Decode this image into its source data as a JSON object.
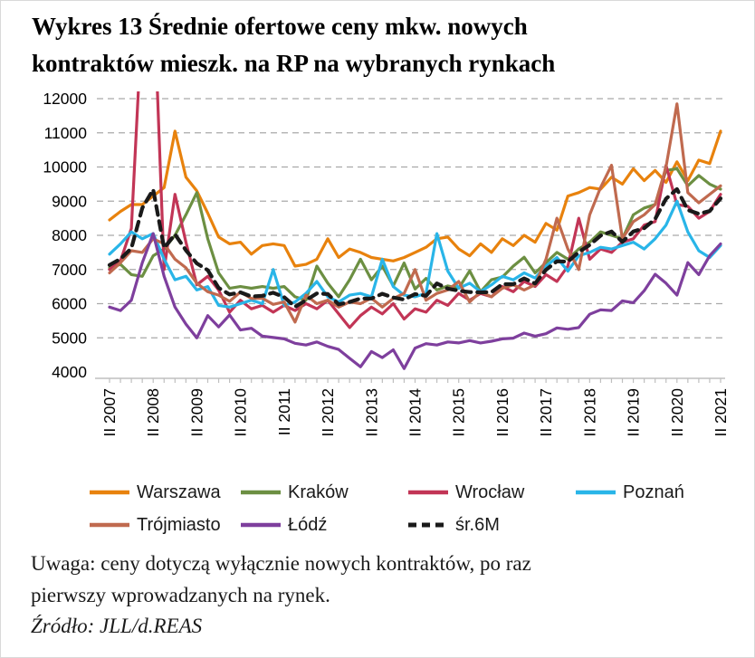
{
  "title": {
    "line1": "Wykres 13 Średnie ofertowe ceny mkw. nowych",
    "line2": "kontraktów mieszk. na RP na wybranych rynkach"
  },
  "note": {
    "line1": "Uwaga: ceny dotyczą wyłącznie nowych kontraktów, po raz",
    "line2": "pierwszy wprowadzanych na rynek."
  },
  "source": "Źródło: JLL/d.REAS",
  "colors": {
    "grid": "#a9a9a9",
    "axis": "#bfbfbf",
    "text": "#000000"
  },
  "chart_data": {
    "type": "line",
    "title": "Średnie ofertowe ceny mkw. nowych kontraktów mieszkaniowych na rynku pierwotnym",
    "xlabel": "",
    "ylabel": "",
    "ylim": [
      4000,
      12000
    ],
    "ytick_step": 1000,
    "grid": "horizontal-dashed",
    "legend_position": "bottom",
    "x_unit": "quarter",
    "n_points": 57,
    "x_tick_labels": [
      "II 2007",
      "II 2008",
      "II 2009",
      "II 2010",
      "II 2011",
      "II 2012",
      "II 2013",
      "II 2014",
      "II 2015",
      "II 2016",
      "II 2017",
      "II 2018",
      "II 2019",
      "II 2020",
      "II 2021"
    ],
    "x_tick_every": 4,
    "series": [
      {
        "name": "Warszawa",
        "color": "#E8820D",
        "dash": null,
        "width": 3.2,
        "values": [
          8450,
          8700,
          8900,
          8900,
          9150,
          9400,
          11050,
          9700,
          9300,
          8650,
          7950,
          7750,
          7800,
          7450,
          7700,
          7750,
          7700,
          7100,
          7150,
          7300,
          7900,
          7350,
          7600,
          7500,
          7350,
          7300,
          7250,
          7350,
          7500,
          7650,
          7900,
          7950,
          7600,
          7400,
          7750,
          7500,
          7900,
          7700,
          8000,
          7800,
          8350,
          8150,
          9150,
          9250,
          9400,
          9350,
          9700,
          9500,
          9950,
          9600,
          9900,
          9550,
          10150,
          9600,
          10200,
          10100,
          11050
        ]
      },
      {
        "name": "Kraków",
        "color": "#6C8F42",
        "dash": null,
        "width": 3.2,
        "values": [
          7050,
          7150,
          6850,
          6800,
          7400,
          7600,
          8000,
          8600,
          9250,
          7900,
          6900,
          6450,
          6500,
          6450,
          6500,
          6450,
          6500,
          6200,
          6100,
          7100,
          6600,
          6200,
          6700,
          7300,
          6700,
          7100,
          6520,
          7190,
          6430,
          6740,
          6400,
          6520,
          6450,
          6960,
          6350,
          6700,
          6780,
          7100,
          7360,
          6900,
          7200,
          7500,
          7300,
          7600,
          7800,
          8100,
          8000,
          7900,
          8600,
          8800,
          8900,
          9900,
          9950,
          9450,
          9750,
          9500,
          9350
        ]
      },
      {
        "name": "Wrocław",
        "color": "#C23556",
        "dash": null,
        "width": 3.2,
        "values": [
          7000,
          7250,
          8200,
          14500,
          15500,
          7000,
          9200,
          7800,
          6550,
          6800,
          6400,
          5750,
          6100,
          5850,
          5950,
          5750,
          5950,
          5800,
          6000,
          5850,
          6100,
          5700,
          5300,
          5650,
          5900,
          5700,
          6000,
          5550,
          5850,
          5750,
          6100,
          5950,
          6300,
          6100,
          6300,
          6200,
          6500,
          6350,
          6650,
          6500,
          6850,
          6650,
          7100,
          8500,
          7300,
          7600,
          7500,
          7800,
          7900,
          8300,
          8400,
          10050,
          8900,
          8850,
          8500,
          8700,
          9200
        ]
      },
      {
        "name": "Poznań",
        "color": "#29B5E8",
        "dash": null,
        "width": 3.2,
        "values": [
          7450,
          7750,
          8100,
          7900,
          8050,
          7300,
          6700,
          6800,
          6400,
          6500,
          5950,
          5900,
          6000,
          6100,
          6000,
          7000,
          5950,
          6050,
          6300,
          6650,
          6200,
          6050,
          6250,
          6300,
          6200,
          7300,
          6500,
          6250,
          6200,
          6300,
          8050,
          6950,
          6450,
          6600,
          6350,
          6550,
          6800,
          6700,
          6900,
          6750,
          7100,
          7350,
          6950,
          7400,
          7500,
          7650,
          7600,
          7700,
          7800,
          7600,
          7900,
          8300,
          9000,
          8100,
          7550,
          7350,
          7700
        ]
      },
      {
        "name": "Trójmiasto",
        "color": "#C06A4F",
        "dash": null,
        "width": 3.2,
        "values": [
          6900,
          7200,
          7550,
          7500,
          7900,
          7750,
          7300,
          7050,
          6600,
          6350,
          6250,
          6070,
          6340,
          6150,
          6160,
          5980,
          6050,
          5460,
          6250,
          6000,
          6100,
          5900,
          6050,
          6000,
          6160,
          5900,
          6150,
          6300,
          7000,
          6100,
          6300,
          6400,
          6650,
          6050,
          6350,
          6200,
          6450,
          6550,
          6400,
          6550,
          7300,
          8500,
          7600,
          7000,
          8600,
          9400,
          10050,
          7900,
          8400,
          8600,
          8900,
          10000,
          11850,
          9250,
          8950,
          9200,
          9450
        ]
      },
      {
        "name": "Łódź",
        "color": "#7E3F9D",
        "dash": null,
        "width": 3.2,
        "values": [
          5900,
          5800,
          6100,
          7200,
          8050,
          6800,
          5900,
          5400,
          5000,
          5650,
          5320,
          5670,
          5230,
          5280,
          5050,
          5010,
          4970,
          4840,
          4790,
          4880,
          4750,
          4660,
          4400,
          4150,
          4600,
          4420,
          4650,
          4100,
          4700,
          4830,
          4790,
          4880,
          4850,
          4920,
          4850,
          4900,
          4970,
          4990,
          5140,
          5050,
          5120,
          5290,
          5250,
          5300,
          5690,
          5820,
          5800,
          6080,
          6030,
          6380,
          6860,
          6600,
          6250,
          7200,
          6850,
          7400,
          7750
        ]
      },
      {
        "name": "śr.6M",
        "color": "#1A1A1A",
        "dash": "10 7",
        "width": 4.2,
        "values": [
          7130,
          7310,
          7620,
          8800,
          9340,
          7630,
          8030,
          7560,
          7180,
          6980,
          6460,
          6270,
          6330,
          6210,
          6230,
          6320,
          6190,
          5910,
          6100,
          6300,
          6280,
          5980,
          6050,
          6150,
          6150,
          6290,
          6180,
          6120,
          6280,
          6230,
          6590,
          6440,
          6380,
          6340,
          6330,
          6340,
          6570,
          6570,
          6740,
          6590,
          6990,
          7240,
          7230,
          7510,
          7720,
          7990,
          8110,
          7810,
          8110,
          8210,
          8480,
          9070,
          9350,
          8740,
          8630,
          8710,
          9080
        ]
      }
    ]
  }
}
